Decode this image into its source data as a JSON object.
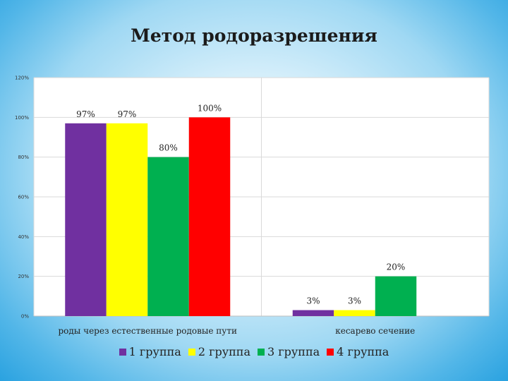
{
  "chart_data": {
    "type": "bar",
    "title": "Метод родоразрешения",
    "categories": [
      "роды через естественные родовые пути",
      "кесарево сечение"
    ],
    "series": [
      {
        "name": "1 группа",
        "color": "#7030a0",
        "values": [
          97,
          3
        ],
        "labels": [
          "97%",
          "3%"
        ]
      },
      {
        "name": "2 группа",
        "color": "#ffff00",
        "values": [
          97,
          3
        ],
        "labels": [
          "97%",
          "3%"
        ]
      },
      {
        "name": "3 группа",
        "color": "#00b050",
        "values": [
          80,
          20
        ],
        "labels": [
          "80%",
          "20%"
        ]
      },
      {
        "name": "4 группа",
        "color": "#ff0000",
        "values": [
          100,
          0
        ],
        "labels": [
          "100%",
          ""
        ]
      }
    ],
    "ylim": [
      0,
      120
    ],
    "yticks": [
      0,
      20,
      40,
      60,
      80,
      100,
      120
    ],
    "ytick_labels": [
      "0%",
      "20%",
      "40%",
      "60%",
      "80%",
      "100%",
      "120%"
    ],
    "grid": true,
    "legend": "bottom"
  }
}
